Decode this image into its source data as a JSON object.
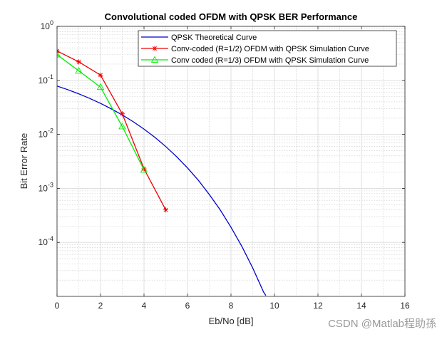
{
  "chart_data": {
    "type": "line",
    "title": "Convolutional coded OFDM with QPSK BER Performance",
    "xlabel": "Eb/No [dB]",
    "ylabel": "Bit Error Rate",
    "xlim": [
      0,
      16
    ],
    "ylim_log10": [
      -5,
      0
    ],
    "yscale": "log",
    "grid": true,
    "minor_grid": true,
    "x_ticks": [
      0,
      2,
      4,
      6,
      8,
      10,
      12,
      14,
      16
    ],
    "y_ticks": [
      {
        "base": "10",
        "exp": "0",
        "log": 0
      },
      {
        "base": "10",
        "exp": "-1",
        "log": -1
      },
      {
        "base": "10",
        "exp": "-2",
        "log": -2
      },
      {
        "base": "10",
        "exp": "-3",
        "log": -3
      },
      {
        "base": "10",
        "exp": "-4",
        "log": -4
      }
    ],
    "legend_position": "top-right",
    "series": [
      {
        "name": "QPSK Theoretical Curve",
        "color": "#0000cc",
        "marker": "none",
        "x": [
          0,
          0.5,
          1,
          1.5,
          2,
          2.5,
          3,
          3.5,
          4,
          4.5,
          5,
          5.5,
          6,
          6.5,
          7,
          7.5,
          8,
          8.5,
          9,
          9.5,
          9.6
        ],
        "y": [
          0.0786,
          0.0671,
          0.0563,
          0.0464,
          0.0375,
          0.0296,
          0.0229,
          0.0172,
          0.0125,
          0.00881,
          0.00595,
          0.00386,
          0.00239,
          0.00141,
          0.000773,
          0.000402,
          0.000191,
          8.42e-05,
          3.36e-05,
          1.2e-05,
          1.04e-05
        ]
      },
      {
        "name": "Conv-coded (R=1/2) OFDM with QPSK Simulation Curve",
        "color": "#ee0000",
        "marker": "star",
        "x": [
          0,
          1,
          2,
          3,
          4,
          5
        ],
        "y": [
          0.35,
          0.22,
          0.125,
          0.024,
          0.0023,
          0.0004
        ]
      },
      {
        "name": "Conv coded (R=1/3) OFDM with QPSK Simulation Curve",
        "color": "#00ee00",
        "marker": "triangle",
        "x": [
          0,
          1,
          2,
          3,
          4
        ],
        "y": [
          0.3,
          0.15,
          0.075,
          0.014,
          0.0022
        ]
      }
    ]
  },
  "watermark": "CSDN @Matlab程助孫"
}
